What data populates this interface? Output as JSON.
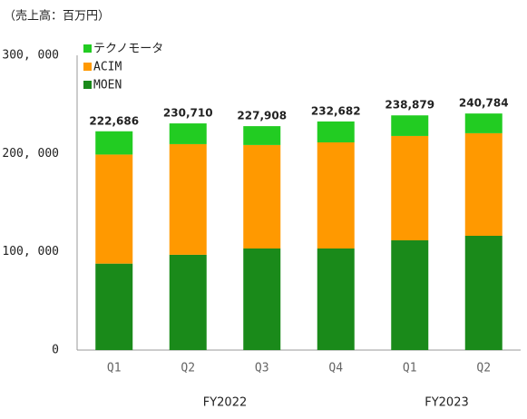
{
  "chart_data": {
    "type": "stacked_bar",
    "unit_label": "（売上高：百万円）",
    "categories": [
      "Q1",
      "Q2",
      "Q3",
      "Q4",
      "Q1",
      "Q2"
    ],
    "groups": [
      {
        "label": "FY2022",
        "count": 4
      },
      {
        "label": "FY2023",
        "count": 2
      }
    ],
    "series": [
      {
        "name": "MOEN",
        "color": "#1a8a1a",
        "values": [
          88000,
          97000,
          103400,
          103400,
          111700,
          116300
        ]
      },
      {
        "name": "ACIM",
        "color": "#ff9900",
        "values": [
          111000,
          112600,
          105300,
          108000,
          106200,
          104400
        ]
      },
      {
        "name": "テクノモータ",
        "color": "#22cc22",
        "values": [
          23686,
          21110,
          19208,
          21282,
          20979,
          20084
        ]
      }
    ],
    "totals": {
      "values": [
        222686,
        230710,
        227908,
        232682,
        238879,
        240784
      ],
      "value_labels": [
        "222,686",
        "230,710",
        "227,908",
        "232,682",
        "238,879",
        "240,784"
      ]
    },
    "ylim": [
      0,
      300000
    ],
    "yticks": [
      0,
      {
        "value": 100000,
        "label": "100, 000"
      },
      {
        "value": 200000,
        "label": "200, 000"
      },
      {
        "value": 300000,
        "label": "300, 000"
      }
    ],
    "grid": false,
    "legend": "top-left"
  }
}
